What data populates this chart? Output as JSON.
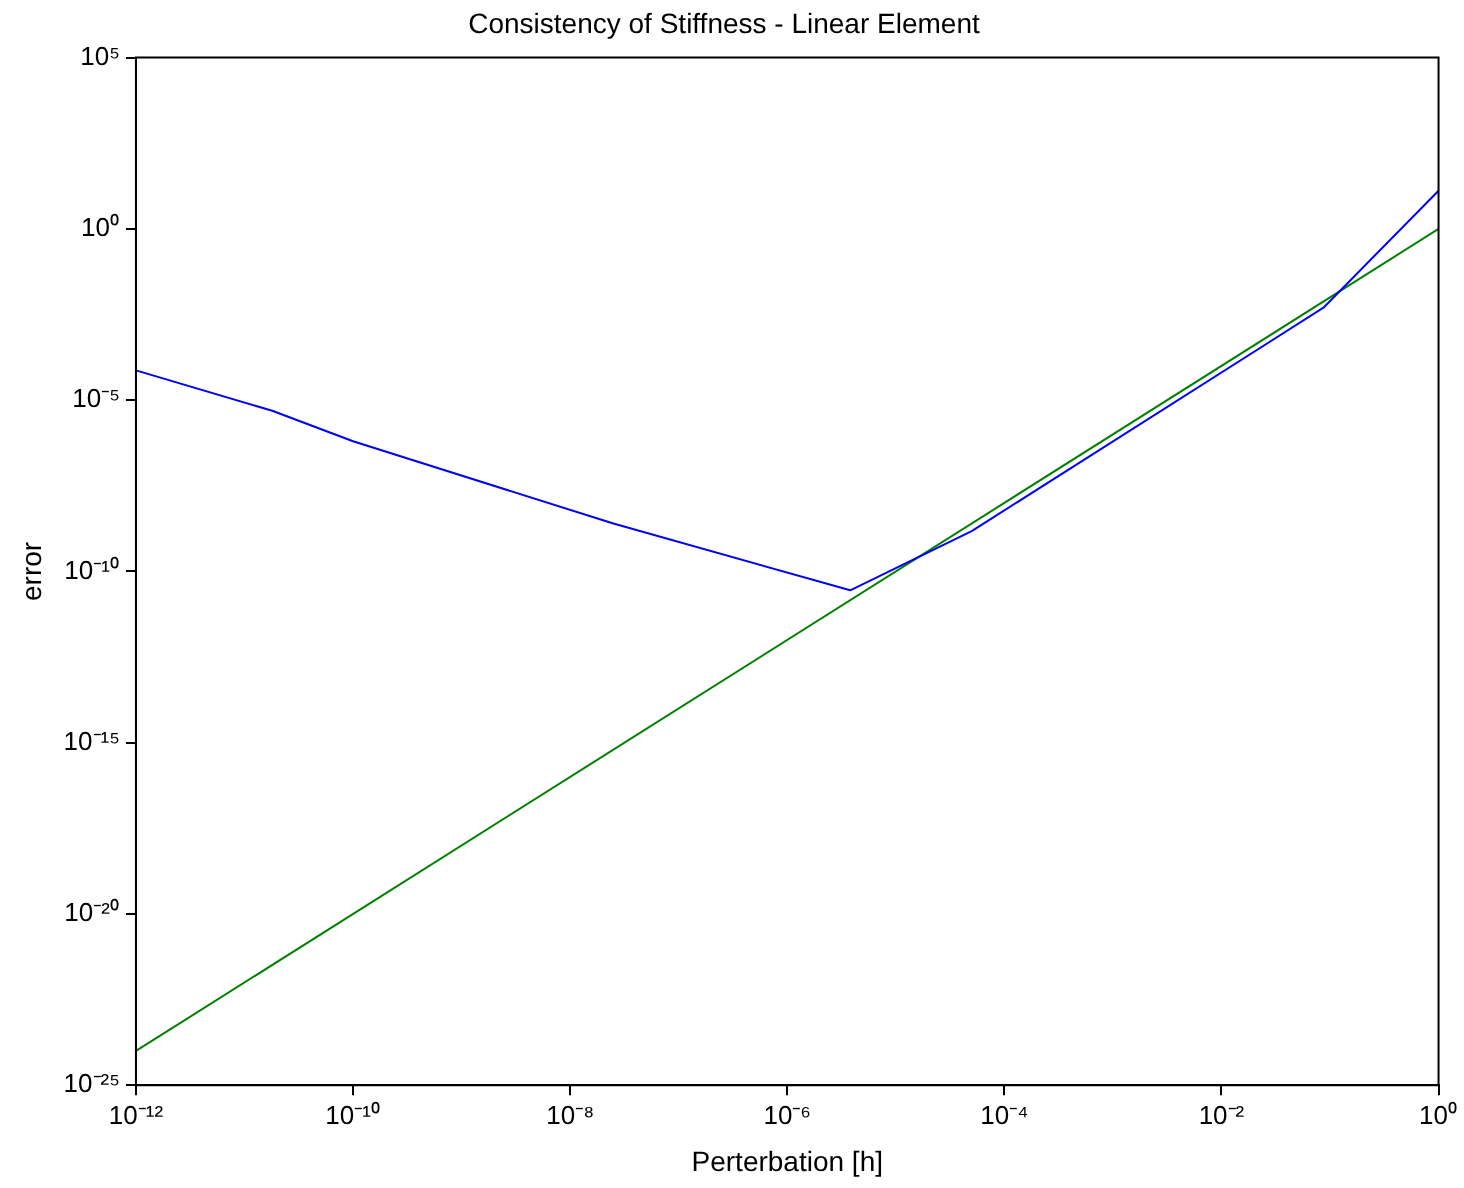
{
  "chart_data": {
    "type": "line",
    "title": "Consistency of Stiffness - Linear Element",
    "xlabel": "Perterbation [h]",
    "ylabel": "error",
    "log": "xy",
    "grid": false,
    "legend": false,
    "marker": "none",
    "line_style": "solid",
    "xlim": [
      1e-12,
      1
    ],
    "ylim": [
      1e-25,
      100000.0
    ],
    "xticks": [
      {
        "value": 1e-12,
        "label": "10⁻¹²"
      },
      {
        "value": 1e-10,
        "label": "10⁻¹⁰"
      },
      {
        "value": 1e-08,
        "label": "10⁻⁸"
      },
      {
        "value": 1e-06,
        "label": "10⁻⁶"
      },
      {
        "value": 0.0001,
        "label": "10⁻⁴"
      },
      {
        "value": 0.01,
        "label": "10⁻²"
      },
      {
        "value": 1,
        "label": "10⁰"
      }
    ],
    "yticks": [
      {
        "value": 1e-25,
        "label": "10⁻²⁵"
      },
      {
        "value": 1e-20,
        "label": "10⁻²⁰"
      },
      {
        "value": 1e-15,
        "label": "10⁻¹⁵"
      },
      {
        "value": 1e-10,
        "label": "10⁻¹⁰"
      },
      {
        "value": 1e-05,
        "label": "10⁻⁵"
      },
      {
        "value": 1,
        "label": "10⁰"
      },
      {
        "value": 100000.0,
        "label": "10⁵"
      }
    ],
    "series": [
      {
        "color": "#0000ff",
        "x": [
          1e-12,
          1.8e-11,
          1e-10,
          2.5e-08,
          3.8e-06,
          5e-05,
          0.087,
          1
        ],
        "values": [
          7.4e-05,
          4.9e-06,
          6.3e-07,
          2.5e-09,
          2.8e-11,
          1.5e-09,
          0.005,
          13
        ]
      },
      {
        "color": "#008000",
        "x": [
          1e-12,
          1
        ],
        "values": [
          1e-24,
          1
        ]
      }
    ]
  }
}
